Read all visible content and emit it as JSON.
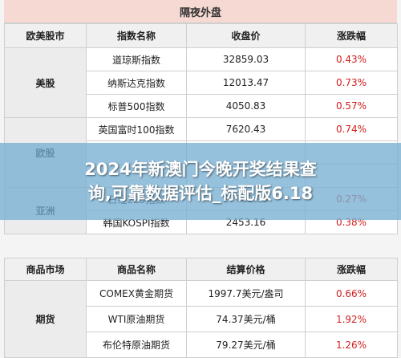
{
  "title": "隔夜外盘",
  "equities": {
    "headers": [
      "欧美股市",
      "指数名称",
      "收盘价",
      "涨跌幅"
    ],
    "groups": [
      {
        "market": "美股",
        "rows": [
          {
            "name": "道琼斯指数",
            "close": "32859.03",
            "change": "0.43%"
          },
          {
            "name": "纳斯达克指数",
            "close": "12013.47",
            "change": "0.73%"
          },
          {
            "name": "标普500指数",
            "close": "4050.83",
            "change": "0.57%"
          }
        ]
      },
      {
        "market": "欧股",
        "rows": [
          {
            "name": "英国富时100指数",
            "close": "7620.43",
            "change": "0.74%"
          },
          {
            "name": "",
            "close": "",
            "change": ""
          },
          {
            "name": "",
            "close": "",
            "change": ""
          }
        ]
      },
      {
        "market": "亚洲",
        "rows": [
          {
            "name": "日经225指数",
            "close": "27782.93",
            "change": "0.27%"
          },
          {
            "name": "韩国KOSPI指数",
            "close": "2453.16",
            "change": "0.38%"
          }
        ]
      }
    ]
  },
  "commodities": {
    "headers": [
      "商品市场",
      "商品名称",
      "结算价格",
      "涨跌幅"
    ],
    "groups": [
      {
        "market": "期货",
        "rows": [
          {
            "name": "COMEX黄金期货",
            "close": "1997.7美元/盎司",
            "change": "0.66%"
          },
          {
            "name": "WTI原油期货",
            "close": "74.37美元/桶",
            "change": "1.92%"
          },
          {
            "name": "布伦特原油期货",
            "close": "79.27美元/桶",
            "change": "1.26%"
          }
        ]
      }
    ]
  },
  "banner": {
    "line1": "2024年新澳门今晚开奖结果查",
    "line2": "询,可靠数据评估_标配版6.18"
  },
  "colors": {
    "title_bg": "#f7d9d3",
    "change_text": "#d21f1f",
    "banner_bg": "#78afd2"
  }
}
